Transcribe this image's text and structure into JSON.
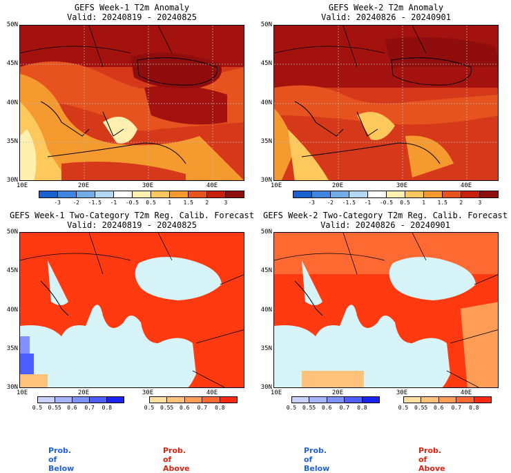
{
  "panels": [
    {
      "id": "tl",
      "title": "GEFS Week-1 T2m Anomaly",
      "valid": "Valid: 20240819 - 20240825"
    },
    {
      "id": "tr",
      "title": "GEFS Week-2 T2m Anomaly",
      "valid": "Valid: 20240826 - 20240901"
    },
    {
      "id": "bl",
      "title": "GEFS Week-1 Two-Category T2m Reg. Calib. Forecast",
      "valid": "Valid: 20240819 - 20240825"
    },
    {
      "id": "br",
      "title": "GEFS Week-2 Two-Category T2m Reg. Calib. Forecast",
      "valid": "Valid: 20240826 - 20240901"
    }
  ],
  "axes": {
    "lat_labels": [
      "50N",
      "45N",
      "40N",
      "35N",
      "30N"
    ],
    "lon_labels": [
      "10E",
      "20E",
      "30E",
      "40E"
    ]
  },
  "anomaly_colorbar": {
    "labels": [
      "-3",
      "-2",
      "-1.5",
      "-1",
      "-0.5",
      "0.5",
      "1",
      "1.5",
      "2",
      "3"
    ],
    "colors": [
      "#1a5fd0",
      "#3f86e0",
      "#73ade8",
      "#b4d8f2",
      "#ffffff",
      "#fff0b0",
      "#fdc95c",
      "#f59a2e",
      "#e6531e",
      "#c8200f",
      "#8f0d0d"
    ]
  },
  "below_colorbar": {
    "labels": [
      "0.5",
      "0.55",
      "0.6",
      "0.7",
      "0.8"
    ],
    "colors": [
      "#c8d4ff",
      "#a4b4ff",
      "#7f92ff",
      "#4e5fff",
      "#1a24f0"
    ]
  },
  "above_colorbar": {
    "labels": [
      "0.5",
      "0.55",
      "0.6",
      "0.7",
      "0.8"
    ],
    "colors": [
      "#ffe0a0",
      "#ffc27a",
      "#ff9c55",
      "#ff6a33",
      "#ff2a0f"
    ]
  },
  "legend": {
    "prob_below": "Prob. of Below",
    "prob_above": "Prob. of Above",
    "below_color": "#2060e0",
    "above_color": "#e02010"
  },
  "colors": {
    "sea_prob": "#d6f3f7",
    "land_prob": "#ff3a10",
    "anomaly_hot": "#a3120e",
    "anomaly_warm": "#d6391a"
  }
}
